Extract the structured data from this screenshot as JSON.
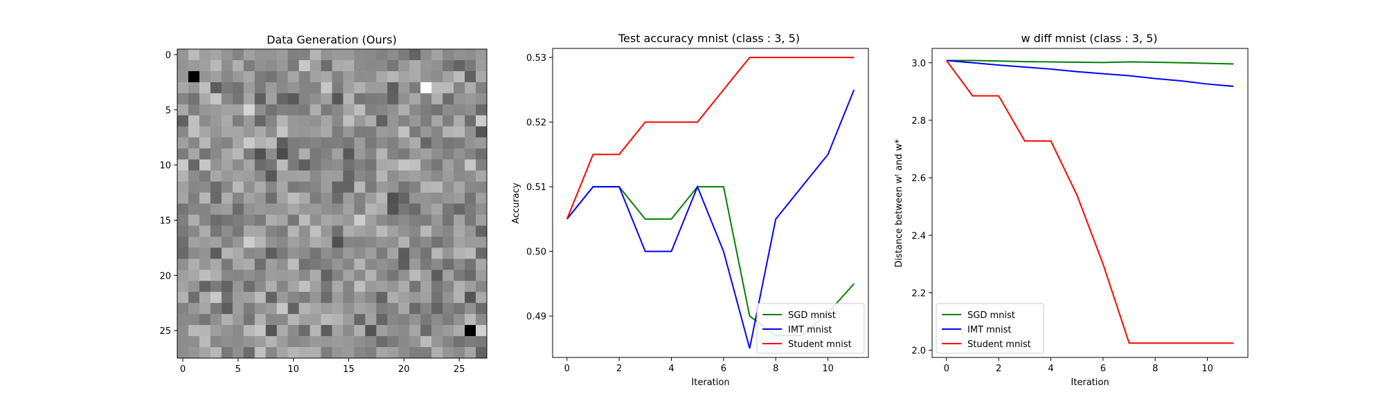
{
  "chart_data": [
    {
      "type": "heatmap",
      "title": "Data Generation (Ours)",
      "colormap": "gray",
      "rows": 28,
      "cols": 28,
      "xticks": [
        0,
        5,
        10,
        15,
        20,
        25
      ],
      "yticks": [
        0,
        5,
        10,
        15,
        20,
        25
      ],
      "dark_extremes": [
        [
          2,
          1
        ],
        [
          25,
          26
        ]
      ],
      "bright_extremes": [
        [
          3,
          22
        ]
      ]
    },
    {
      "type": "line",
      "title": "Test accuracy mnist (class : 3, 5)",
      "xlabel": "Iteration",
      "ylabel": "Accuracy",
      "x": [
        0,
        1,
        2,
        3,
        4,
        5,
        6,
        7,
        8,
        9,
        10,
        11
      ],
      "xlim": [
        -0.55,
        11.55
      ],
      "ylim": [
        0.4836,
        0.5314
      ],
      "xticks": [
        0,
        2,
        4,
        6,
        8,
        10
      ],
      "yticks": [
        0.49,
        0.5,
        0.51,
        0.52,
        0.53
      ],
      "ytick_labels": [
        "0.49",
        "0.50",
        "0.51",
        "0.52",
        "0.53"
      ],
      "legend": "lower-right",
      "series": [
        {
          "name": "SGD mnist",
          "color": "#008000",
          "values": [
            0.505,
            0.51,
            0.51,
            0.505,
            0.505,
            0.51,
            0.51,
            0.49,
            0.487,
            0.487,
            0.4905,
            0.495
          ]
        },
        {
          "name": "IMT mnist",
          "color": "#0000ff",
          "values": [
            0.505,
            0.51,
            0.51,
            0.5,
            0.5,
            0.51,
            0.5,
            0.485,
            0.505,
            0.51,
            0.515,
            0.525
          ]
        },
        {
          "name": "Student mnist",
          "color": "#ff0000",
          "values": [
            0.505,
            0.515,
            0.515,
            0.52,
            0.52,
            0.52,
            0.525,
            0.53,
            0.53,
            0.53,
            0.53,
            0.53
          ]
        }
      ]
    },
    {
      "type": "line",
      "title": "w diff mnist (class : 3, 5)",
      "xlabel": "Iteration",
      "ylabel": "Distance between wᵗ and w*",
      "x": [
        0,
        1,
        2,
        3,
        4,
        5,
        6,
        7,
        8,
        9,
        10,
        11
      ],
      "xlim": [
        -0.55,
        11.55
      ],
      "ylim": [
        1.975,
        3.05
      ],
      "xticks": [
        0,
        2,
        4,
        6,
        8,
        10
      ],
      "yticks": [
        2.0,
        2.2,
        2.4,
        2.6,
        2.8,
        3.0
      ],
      "ytick_labels": [
        "2.0",
        "2.2",
        "2.4",
        "2.6",
        "2.8",
        "3.0"
      ],
      "legend": "lower-left",
      "series": [
        {
          "name": "SGD mnist",
          "color": "#008000",
          "values": [
            3.008,
            3.008,
            3.006,
            3.004,
            3.003,
            3.002,
            3.001,
            3.003,
            3.002,
            3.0,
            2.998,
            2.996
          ]
        },
        {
          "name": "IMT mnist",
          "color": "#0000ff",
          "values": [
            3.008,
            3.0,
            2.992,
            2.985,
            2.978,
            2.969,
            2.962,
            2.955,
            2.945,
            2.937,
            2.926,
            2.918
          ]
        },
        {
          "name": "Student mnist",
          "color": "#ff0000",
          "values": [
            3.008,
            2.885,
            2.885,
            2.728,
            2.728,
            2.54,
            2.3,
            2.025,
            2.025,
            2.025,
            2.025,
            2.025
          ]
        }
      ]
    }
  ]
}
